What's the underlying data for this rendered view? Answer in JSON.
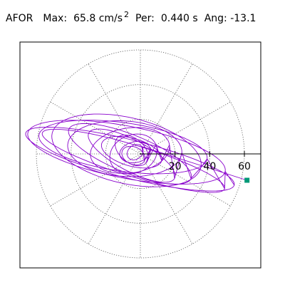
{
  "header": {
    "station": "AFOR",
    "max_label": "Max:",
    "max_value": "65.8",
    "max_unit": "cm/s",
    "max_unit_sup": "2",
    "per_label": "Per:",
    "per_value": "0.440",
    "per_unit": "s",
    "ang_label": "Ang:",
    "ang_value": "-13.1"
  },
  "chart_data": {
    "type": "polar-orbit",
    "title": "",
    "radial_ticks": [
      "20",
      "40",
      "60"
    ],
    "radial_tick_values": [
      20,
      40,
      60
    ],
    "rmax": 60,
    "angular_grid_deg": 30,
    "grid": true,
    "colors": {
      "trace": "#8800cc",
      "end_marker": "#009977",
      "grid": "#555555",
      "axis": "#000000"
    },
    "end_point": {
      "x": 61.5,
      "y": -15.2
    },
    "trace_loops": [
      {
        "a": 62,
        "b": 11,
        "rot": -14,
        "cx": -6,
        "cy": -3
      },
      {
        "a": 58,
        "b": 15,
        "rot": -11,
        "cx": -8,
        "cy": 1
      },
      {
        "a": 55,
        "b": 9,
        "rot": -17,
        "cx": -4,
        "cy": -4
      },
      {
        "a": 49,
        "b": 14,
        "rot": -8,
        "cx": -10,
        "cy": 4
      },
      {
        "a": 44,
        "b": 19,
        "rot": -13,
        "cx": -8,
        "cy": 2
      },
      {
        "a": 38,
        "b": 11,
        "rot": -22,
        "cx": -6,
        "cy": 0
      },
      {
        "a": 33,
        "b": 16,
        "rot": -4,
        "cx": -9,
        "cy": 3
      },
      {
        "a": 28,
        "b": 9,
        "rot": -28,
        "cx": -5,
        "cy": -1
      },
      {
        "a": 23,
        "b": 13,
        "rot": 8,
        "cx": -6,
        "cy": 2
      },
      {
        "a": 18,
        "b": 8,
        "rot": -16,
        "cx": -5,
        "cy": 1
      },
      {
        "a": 14,
        "b": 11,
        "rot": 22,
        "cx": -4,
        "cy": 0
      },
      {
        "a": 11,
        "b": 7,
        "rot": -40,
        "cx": -5,
        "cy": 2
      },
      {
        "a": 9,
        "b": 6,
        "rot": 12,
        "cx": -3,
        "cy": 1
      },
      {
        "a": 7,
        "b": 5,
        "rot": -25,
        "cx": -4,
        "cy": -1
      },
      {
        "a": 5,
        "b": 4,
        "rot": 40,
        "cx": -3,
        "cy": 1
      }
    ]
  }
}
